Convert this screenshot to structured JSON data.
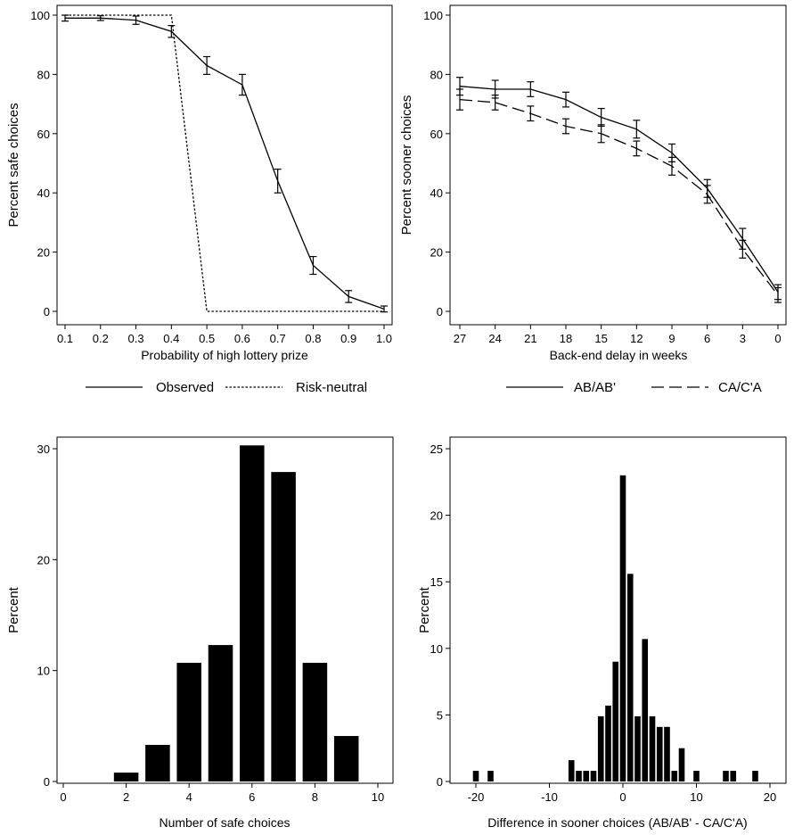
{
  "chart_data": [
    {
      "type": "line",
      "ylabel": "Percent safe choices",
      "xlabel": "Probability of high lottery prize",
      "x": [
        0.1,
        0.2,
        0.3,
        0.4,
        0.5,
        0.6,
        0.7,
        0.8,
        0.9,
        1.0
      ],
      "xticks": [
        "0.1",
        "0.2",
        "0.3",
        "0.4",
        "0.5",
        "0.6",
        "0.7",
        "0.8",
        "0.9",
        "1.0"
      ],
      "yticks": [
        "0",
        "20",
        "40",
        "60",
        "80",
        "100"
      ],
      "xlim": [
        0.06,
        1.04
      ],
      "ylim": [
        0,
        101
      ],
      "series": [
        {
          "name": "Observed",
          "style": "solid",
          "values": [
            99,
            99,
            98.3,
            94.5,
            83,
            76.5,
            44,
            15.5,
            5,
            0.8
          ],
          "err": [
            1,
            0.8,
            1.4,
            2,
            3,
            3.5,
            4,
            3,
            2,
            1
          ]
        },
        {
          "name": "Risk-neutral",
          "style": "dotted",
          "values": [
            100,
            100,
            100,
            100,
            0,
            0,
            0,
            0,
            0,
            0
          ]
        }
      ],
      "legend": "bottom"
    },
    {
      "type": "line",
      "ylabel": "Percent sooner choices",
      "xlabel": "Back-end delay in weeks",
      "x": [
        27,
        24,
        21,
        18,
        15,
        12,
        9,
        6,
        3,
        0
      ],
      "xticks": [
        "27",
        "24",
        "21",
        "18",
        "15",
        "12",
        "9",
        "6",
        "3",
        "0"
      ],
      "yticks": [
        "0",
        "20",
        "40",
        "60",
        "80",
        "100"
      ],
      "ylim": [
        0,
        101
      ],
      "series": [
        {
          "name": "AB/AB'",
          "style": "solid",
          "values": [
            76,
            75,
            75,
            71.5,
            65.5,
            61.5,
            53.5,
            41.5,
            24.5,
            6.5
          ],
          "err": [
            3,
            3,
            2.5,
            2.5,
            3,
            3,
            3,
            3,
            3.5,
            2.5
          ]
        },
        {
          "name": "CA/C'A",
          "style": "dashed",
          "values": [
            71.5,
            70.5,
            66.8,
            62.5,
            60,
            55,
            49,
            39.5,
            21,
            5.5
          ],
          "err": [
            3.5,
            2.5,
            2.5,
            2.5,
            3,
            2.5,
            3,
            3,
            3,
            2.5
          ]
        }
      ],
      "legend": "bottom"
    },
    {
      "type": "bar",
      "ylabel": "Percent",
      "xlabel": "Number of safe choices",
      "categories": [
        2,
        3,
        4,
        5,
        6,
        7,
        8,
        9
      ],
      "values": [
        0.8,
        3.3,
        10.7,
        12.3,
        30.3,
        27.9,
        10.7,
        4.1
      ],
      "xticks": [
        "0",
        "2",
        "4",
        "6",
        "8",
        "10"
      ],
      "yticks": [
        "0",
        "10",
        "20",
        "30"
      ],
      "xlim": [
        -0.5,
        10.5
      ],
      "ylim": [
        0,
        32
      ]
    },
    {
      "type": "bar",
      "ylabel": "Percent",
      "xlabel": "Difference in sooner choices (AB/AB' - CA/C'A)",
      "categories": [
        -20,
        -18,
        -7,
        -6,
        -5,
        -4,
        -3,
        -2,
        -1,
        0,
        1,
        2,
        3,
        4,
        5,
        6,
        7,
        8,
        10,
        14,
        15,
        18
      ],
      "values": [
        0.8,
        0.8,
        1.6,
        0.8,
        0.8,
        0.8,
        4.9,
        5.7,
        9,
        23,
        15.6,
        4.9,
        10.7,
        4.9,
        4.1,
        4.1,
        0.8,
        2.5,
        0.8,
        0.8,
        0.8,
        0.8
      ],
      "xticks": [
        "-20",
        "-10",
        "0",
        "10",
        "20"
      ],
      "yticks": [
        "0",
        "5",
        "10",
        "15",
        "20",
        "25"
      ],
      "xlim": [
        -21,
        21
      ],
      "ylim": [
        0,
        26
      ]
    }
  ]
}
